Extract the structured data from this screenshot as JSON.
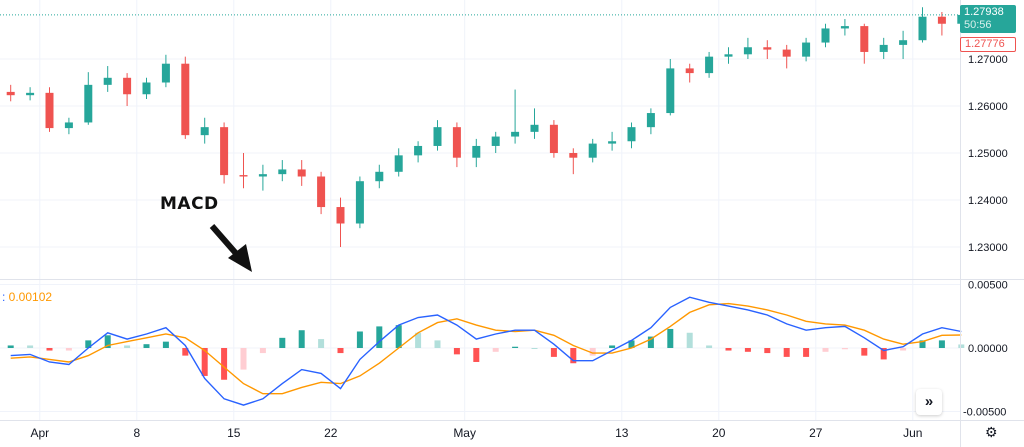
{
  "chart_data": [
    {
      "type": "candlestick",
      "dates": [
        "Mar 28",
        "Mar 29",
        "Apr 1",
        "Apr 2",
        "Apr 3",
        "Apr 4",
        "Apr 5",
        "Apr 8",
        "Apr 9",
        "Apr 10",
        "Apr 11",
        "Apr 12",
        "Apr 15",
        "Apr 16",
        "Apr 17",
        "Apr 18",
        "Apr 19",
        "Apr 22",
        "Apr 23",
        "Apr 24",
        "Apr 25",
        "Apr 26",
        "Apr 29",
        "Apr 30",
        "May 1",
        "May 2",
        "May 3",
        "May 6",
        "May 7",
        "May 8",
        "May 9",
        "May 10",
        "May 13",
        "May 14",
        "May 15",
        "May 16",
        "May 17",
        "May 20",
        "May 21",
        "May 22",
        "May 23",
        "May 24",
        "May 27",
        "May 28",
        "May 29",
        "May 30",
        "May 31",
        "Jun 3",
        "Jun 4",
        "Jun 5"
      ],
      "ohlc": [
        [
          1.263,
          1.2645,
          1.261,
          1.2623
        ],
        [
          1.2623,
          1.264,
          1.2612,
          1.2628
        ],
        [
          1.2628,
          1.264,
          1.2545,
          1.2553
        ],
        [
          1.2553,
          1.2575,
          1.254,
          1.2565
        ],
        [
          1.2565,
          1.2672,
          1.256,
          1.2645
        ],
        [
          1.2645,
          1.2685,
          1.263,
          1.266
        ],
        [
          1.266,
          1.267,
          1.26,
          1.2625
        ],
        [
          1.2625,
          1.266,
          1.2615,
          1.265
        ],
        [
          1.265,
          1.2709,
          1.264,
          1.269
        ],
        [
          1.269,
          1.2705,
          1.253,
          1.2538
        ],
        [
          1.2538,
          1.2575,
          1.252,
          1.2555
        ],
        [
          1.2555,
          1.2565,
          1.2435,
          1.2453
        ],
        [
          1.2453,
          1.25,
          1.2425,
          1.245
        ],
        [
          1.245,
          1.2475,
          1.242,
          1.2455
        ],
        [
          1.2455,
          1.2485,
          1.244,
          1.2465
        ],
        [
          1.2465,
          1.2485,
          1.243,
          1.245
        ],
        [
          1.245,
          1.246,
          1.237,
          1.2385
        ],
        [
          1.2385,
          1.2405,
          1.23,
          1.235
        ],
        [
          1.235,
          1.245,
          1.234,
          1.244
        ],
        [
          1.244,
          1.2475,
          1.2425,
          1.246
        ],
        [
          1.246,
          1.251,
          1.245,
          1.2495
        ],
        [
          1.2495,
          1.2525,
          1.248,
          1.2515
        ],
        [
          1.2515,
          1.257,
          1.2505,
          1.2555
        ],
        [
          1.2555,
          1.2565,
          1.247,
          1.249
        ],
        [
          1.249,
          1.253,
          1.247,
          1.2515
        ],
        [
          1.2515,
          1.2545,
          1.25,
          1.2535
        ],
        [
          1.2535,
          1.2635,
          1.252,
          1.2545
        ],
        [
          1.2545,
          1.2595,
          1.253,
          1.256
        ],
        [
          1.256,
          1.257,
          1.249,
          1.25
        ],
        [
          1.25,
          1.251,
          1.2455,
          1.249
        ],
        [
          1.249,
          1.253,
          1.248,
          1.252
        ],
        [
          1.252,
          1.2545,
          1.2505,
          1.2525
        ],
        [
          1.2525,
          1.2565,
          1.251,
          1.2555
        ],
        [
          1.2555,
          1.2595,
          1.254,
          1.2585
        ],
        [
          1.2585,
          1.27,
          1.258,
          1.268
        ],
        [
          1.268,
          1.269,
          1.265,
          1.267
        ],
        [
          1.267,
          1.2715,
          1.266,
          1.2705
        ],
        [
          1.2705,
          1.2725,
          1.269,
          1.271
        ],
        [
          1.271,
          1.2745,
          1.27,
          1.2725
        ],
        [
          1.2725,
          1.274,
          1.27,
          1.272
        ],
        [
          1.272,
          1.273,
          1.268,
          1.2705
        ],
        [
          1.2705,
          1.2745,
          1.2695,
          1.2735
        ],
        [
          1.2735,
          1.2775,
          1.2725,
          1.2765
        ],
        [
          1.2765,
          1.2785,
          1.275,
          1.277
        ],
        [
          1.277,
          1.2775,
          1.269,
          1.2715
        ],
        [
          1.2715,
          1.2745,
          1.27,
          1.273
        ],
        [
          1.273,
          1.276,
          1.27,
          1.274
        ],
        [
          1.274,
          1.281,
          1.2735,
          1.279
        ],
        [
          1.279,
          1.28,
          1.275,
          1.2775
        ],
        [
          1.2775,
          1.2805,
          1.276,
          1.27938
        ]
      ],
      "ylim": [
        1.2265,
        1.2845
      ],
      "yticks": [
        "1.27000",
        "1.26000",
        "1.25000",
        "1.24000",
        "1.23000"
      ],
      "ytick_values": [
        1.27,
        1.26,
        1.25,
        1.24,
        1.23
      ],
      "xticks": [
        {
          "label": "Apr",
          "date": "Apr 1"
        },
        {
          "label": "8",
          "date": "Apr 8"
        },
        {
          "label": "15",
          "date": "Apr 15"
        },
        {
          "label": "22",
          "date": "Apr 22"
        },
        {
          "label": "May",
          "date": "May 1"
        },
        {
          "label": "13",
          "date": "May 13"
        },
        {
          "label": "20",
          "date": "May 20"
        },
        {
          "label": "27",
          "date": "May 27"
        },
        {
          "label": "Jun",
          "date": "Jun 3"
        }
      ],
      "last_price": 1.27938,
      "last_price_label": "1.27938",
      "countdown": "50:56",
      "prev_price": 1.27776,
      "prev_price_label": "1.27776",
      "grid": true,
      "colors": {
        "up": "#26a69a",
        "down": "#ef5350"
      }
    },
    {
      "type": "line",
      "indicator": "MACD",
      "dates_ref": "same as candlestick dates",
      "macd": [
        -0.0006,
        -0.0005,
        -0.0011,
        -0.0013,
        0.0,
        0.0012,
        0.0007,
        0.0011,
        0.0016,
        0.0002,
        -0.0024,
        -0.004,
        -0.0045,
        -0.004,
        -0.0028,
        -0.0017,
        -0.002,
        -0.0032,
        -0.0009,
        0.0005,
        0.0018,
        0.0024,
        0.0026,
        0.0018,
        0.0007,
        0.0011,
        0.0014,
        0.0014,
        0.0003,
        -0.001,
        -0.001,
        -0.0002,
        0.0006,
        0.0016,
        0.0032,
        0.004,
        0.0036,
        0.0033,
        0.003,
        0.0026,
        0.0019,
        0.0014,
        0.0016,
        0.0017,
        0.0008,
        -0.0002,
        0.0001,
        0.0011,
        0.0016,
        0.0013
      ],
      "signal": [
        -0.0008,
        -0.0007,
        -0.0009,
        -0.0011,
        -0.0006,
        0.0002,
        0.0005,
        0.0008,
        0.0011,
        0.0008,
        -0.0002,
        -0.0015,
        -0.0028,
        -0.0036,
        -0.0036,
        -0.0031,
        -0.0027,
        -0.0028,
        -0.0022,
        -0.0012,
        0.0,
        0.0012,
        0.002,
        0.0023,
        0.0018,
        0.0014,
        0.0013,
        0.0014,
        0.001,
        0.0002,
        -0.0004,
        -0.0004,
        0.0,
        0.0007,
        0.0017,
        0.0028,
        0.0034,
        0.0035,
        0.0033,
        0.003,
        0.0026,
        0.0021,
        0.0019,
        0.0018,
        0.0014,
        0.0007,
        0.0003,
        0.0005,
        0.001,
        0.00102
      ],
      "ylim": [
        -0.0057,
        0.0053
      ],
      "yticks": [
        "0.00500",
        "0.00000",
        "-0.00500"
      ],
      "ytick_values": [
        0.005,
        0,
        -0.005
      ],
      "value_label": "0.00102",
      "colors": {
        "macd": "#2962ff",
        "signal": "#ff9800",
        "hist_up_strong": "#26a69a",
        "hist_up_weak": "#b2dfdb",
        "hist_down_strong": "#ff5252",
        "hist_down_weak": "#ffcdd2"
      }
    }
  ],
  "annotation": {
    "text": "MACD"
  },
  "controls": {
    "scroll_icon": "double-chevron-right-icon",
    "scroll_label": "»",
    "settings_icon": "gear-icon",
    "settings_label": "⚙"
  }
}
